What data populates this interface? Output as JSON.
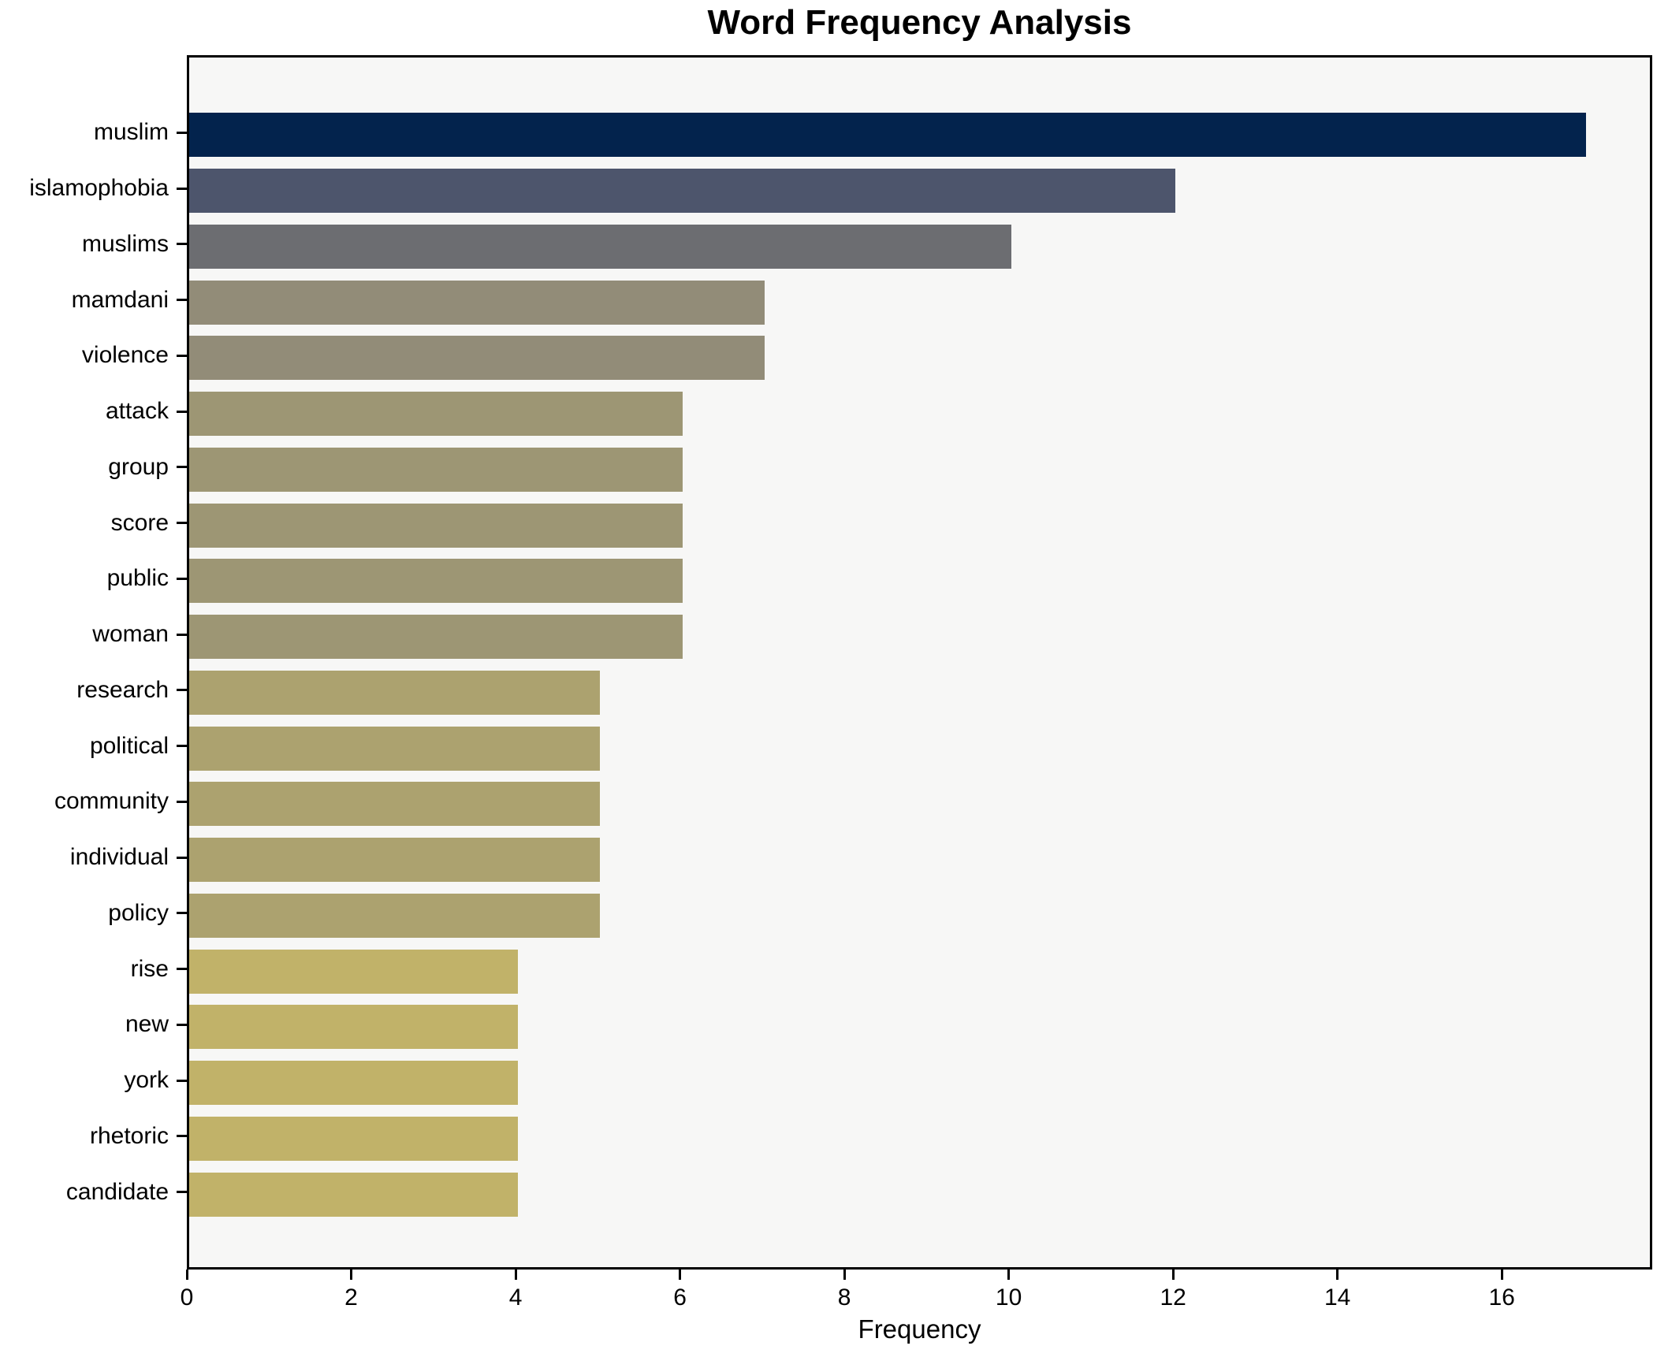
{
  "figure": {
    "background": "#ffffff",
    "axes_background": "#f7f7f6",
    "spine_color": "#000000",
    "text_color": "#000000"
  },
  "chart_data": {
    "type": "bar",
    "orientation": "horizontal",
    "title": "Word Frequency Analysis",
    "xlabel": "Frequency",
    "ylabel": "",
    "categories": [
      "muslim",
      "islamophobia",
      "muslims",
      "mamdani",
      "violence",
      "attack",
      "group",
      "score",
      "public",
      "woman",
      "research",
      "political",
      "community",
      "individual",
      "policy",
      "rise",
      "new",
      "york",
      "rhetoric",
      "candidate"
    ],
    "values": [
      17,
      12,
      10,
      7,
      7,
      6,
      6,
      6,
      6,
      6,
      5,
      5,
      5,
      5,
      5,
      4,
      4,
      4,
      4,
      4
    ],
    "bar_colors": [
      "#03234D",
      "#4D556C",
      "#6C6D71",
      "#928C78",
      "#928C78",
      "#9D9674",
      "#9D9674",
      "#9D9674",
      "#9D9674",
      "#9D9674",
      "#ACA26F",
      "#ACA26F",
      "#ACA26F",
      "#ACA26F",
      "#ACA26F",
      "#C1B269",
      "#C1B269",
      "#C1B269",
      "#C1B269",
      "#C1B269"
    ],
    "xlim": [
      0,
      17.83
    ],
    "xticks": [
      0,
      2,
      4,
      6,
      8,
      10,
      12,
      14,
      16
    ],
    "grid": false,
    "legend": "none"
  }
}
